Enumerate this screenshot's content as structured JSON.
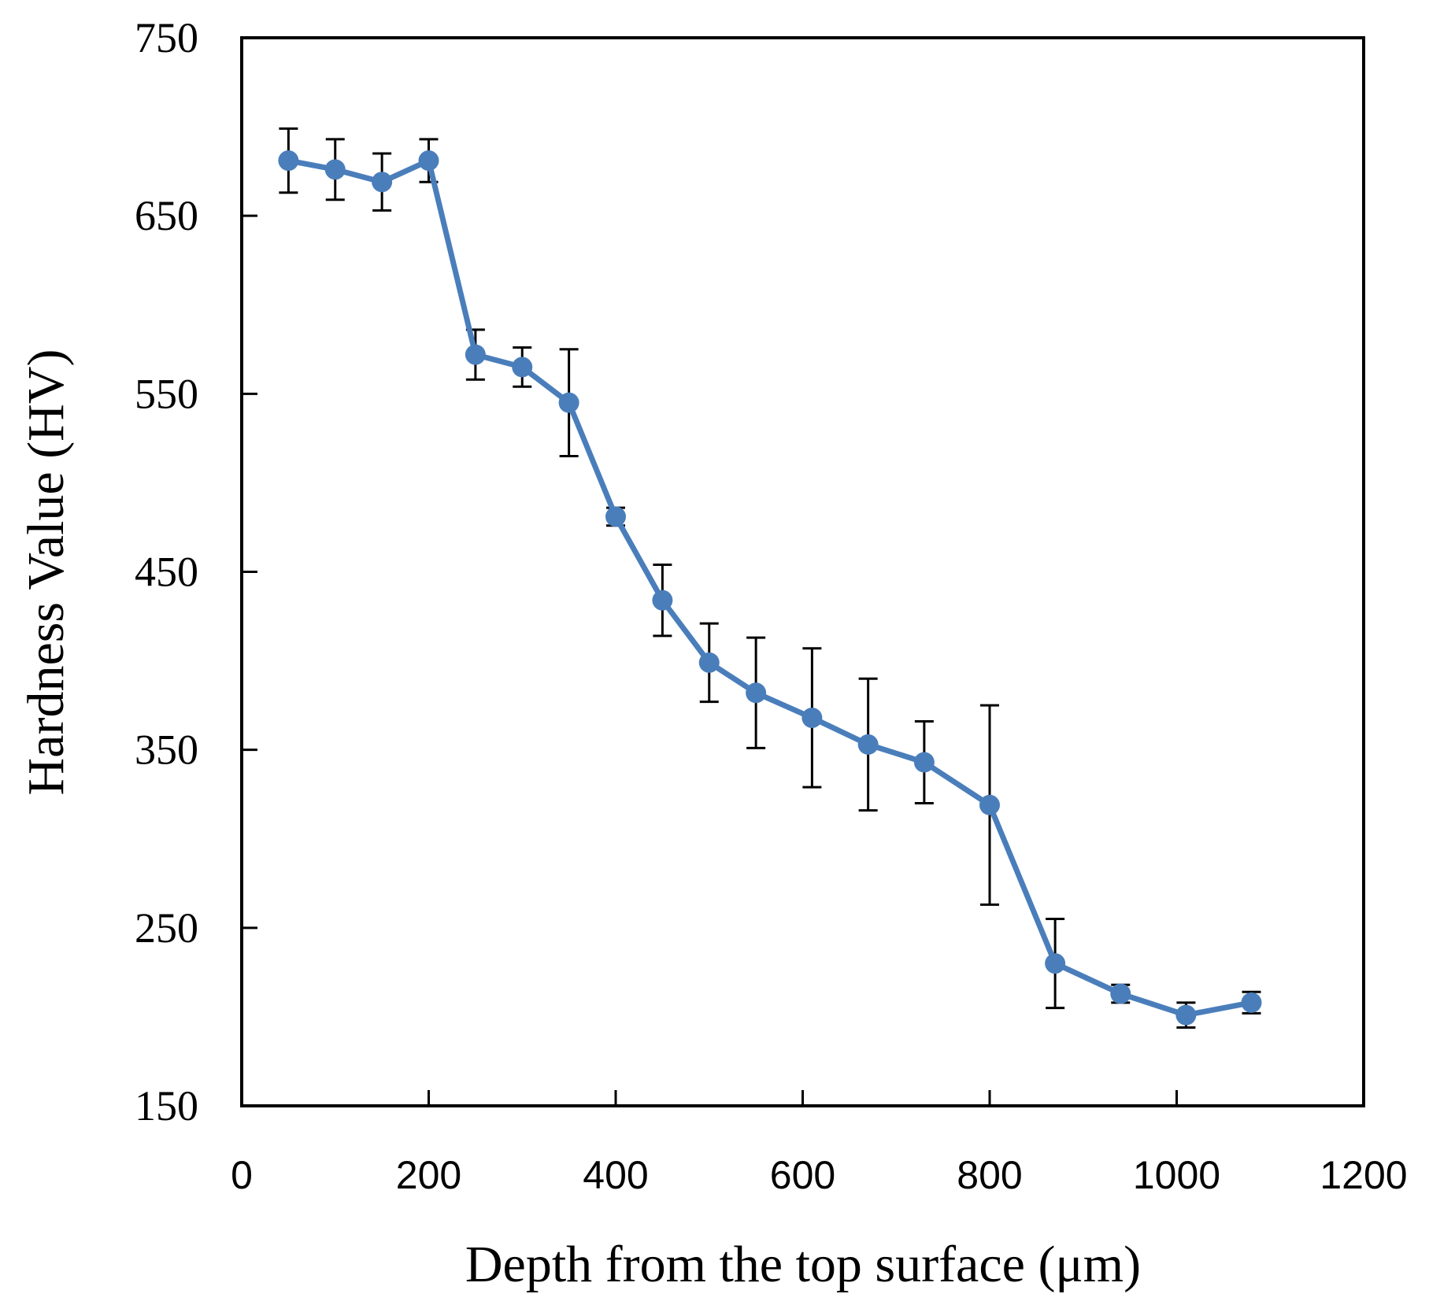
{
  "chart_data": {
    "type": "line",
    "xlabel": "Depth from the top surface (μm)",
    "ylabel": "Hardness Value (HV)",
    "xlim": [
      0,
      1200
    ],
    "ylim": [
      150,
      750
    ],
    "x_ticks": [
      0,
      200,
      400,
      600,
      800,
      1000,
      1200
    ],
    "y_ticks": [
      150,
      250,
      350,
      450,
      550,
      650,
      750
    ],
    "grid": false,
    "legend": "none",
    "series_color": "#4a7ebb",
    "error_bar_color": "#000000",
    "series": [
      {
        "x": [
          50,
          100,
          150,
          200,
          250,
          300,
          350,
          400,
          450,
          500,
          550,
          610,
          670,
          730,
          800,
          870,
          940,
          1010,
          1080
        ],
        "values": [
          681,
          676,
          669,
          681,
          572,
          565,
          545,
          481,
          434,
          399,
          382,
          368,
          353,
          343,
          319,
          230,
          213,
          201,
          208
        ],
        "error": [
          18,
          17,
          16,
          12,
          14,
          11,
          30,
          5,
          20,
          22,
          31,
          39,
          37,
          23,
          56,
          25,
          5,
          7,
          6
        ]
      }
    ]
  }
}
